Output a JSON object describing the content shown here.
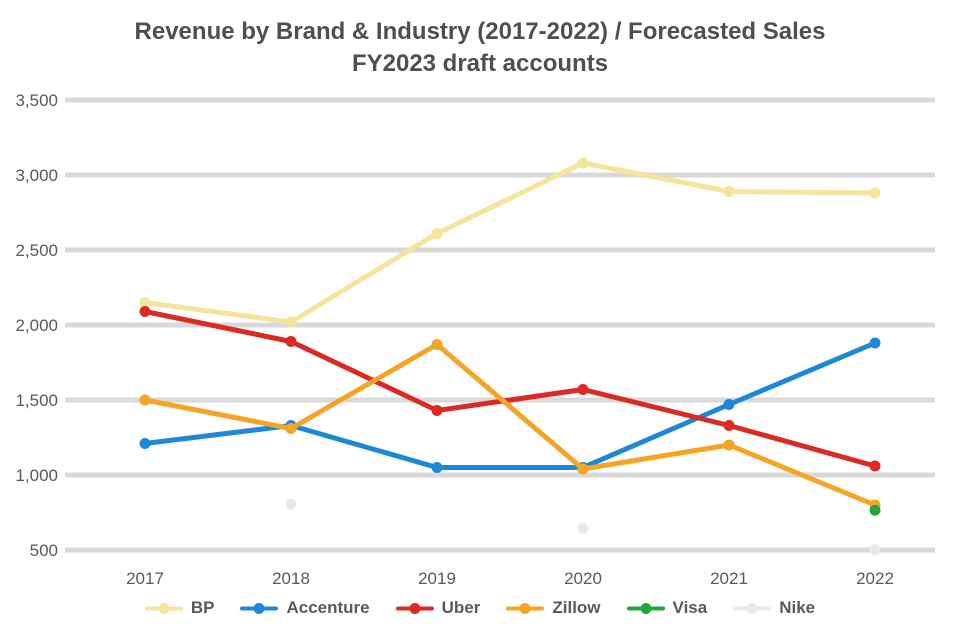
{
  "page": {
    "background": "#FFFFFF"
  },
  "title": {
    "line1": "Revenue by Brand & Industry (2017-2022) / Forecasted Sales",
    "line2": "FY2023 draft accounts"
  },
  "colors": {
    "grid": "#D9D9D9",
    "axis_text": "#595959",
    "title_text": "#4F4F4F",
    "legend_text": "#595959"
  },
  "chart_data": {
    "type": "line",
    "title": "Revenue by Brand & Industry (2017-2022) / Forecasted Sales — FY2023 draft accounts",
    "x_categories": [
      "2017",
      "2018",
      "2019",
      "2020",
      "2021",
      "2022"
    ],
    "y_ticks": [
      3500,
      3000,
      2500,
      2000,
      1500,
      1000,
      500
    ],
    "y_tick_labels": [
      "3,500",
      "3,000",
      "2,500",
      "2,000",
      "1,500",
      "1,000",
      "500"
    ],
    "ylim": [
      500,
      3500
    ],
    "grid": true,
    "legend_position": "bottom",
    "series": [
      {
        "name": "BP",
        "color": "#F4E49C",
        "values": [
          2150,
          2020,
          2610,
          3080,
          2890,
          2880
        ]
      },
      {
        "name": "Accenture",
        "color": "#1E88D8",
        "values": [
          1210,
          1330,
          1050,
          1050,
          1470,
          1880
        ]
      },
      {
        "name": "Uber",
        "color": "#D92B21",
        "values": [
          2090,
          1890,
          1430,
          1570,
          1330,
          1060
        ]
      },
      {
        "name": "Zillow",
        "color": "#F6A426",
        "values": [
          1500,
          1310,
          1870,
          1040,
          1200,
          800
        ]
      },
      {
        "name": "Visa",
        "color": "#21A53C",
        "values": [
          null,
          null,
          null,
          null,
          null,
          765
        ]
      },
      {
        "name": "Nike",
        "color": "#E9E9E9",
        "line_visible": false,
        "values": [
          null,
          805,
          null,
          645,
          null,
          500
        ]
      }
    ]
  }
}
